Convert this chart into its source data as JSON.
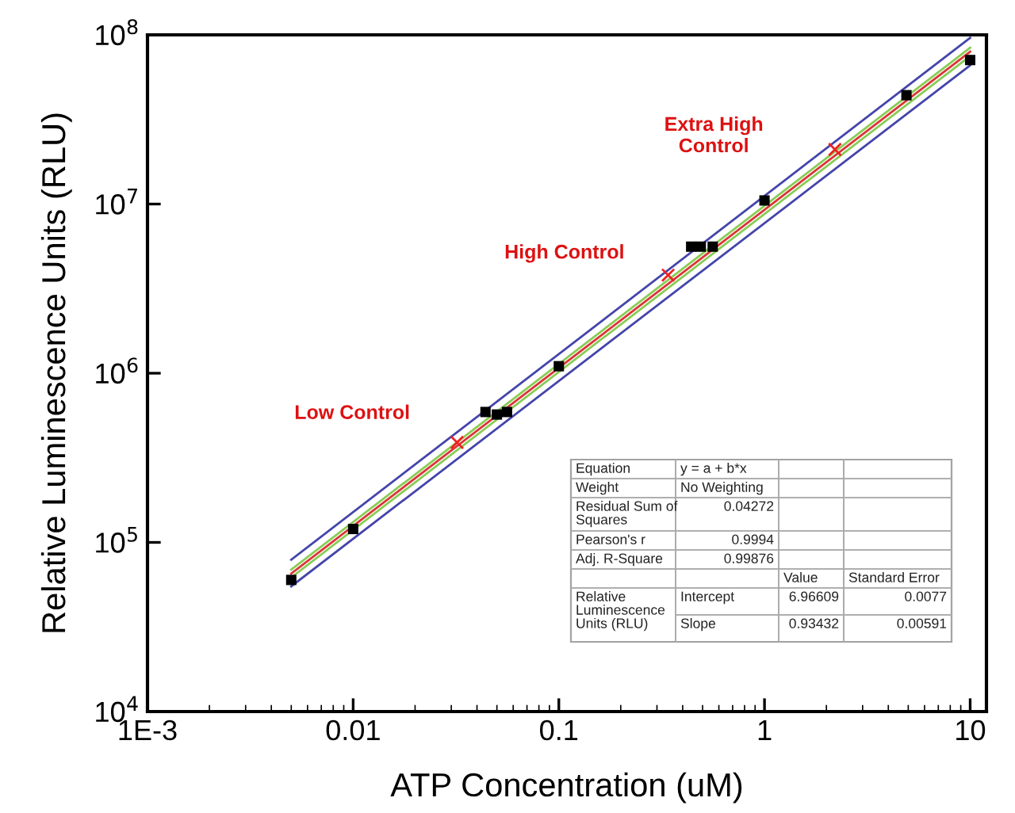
{
  "chart_data": {
    "type": "scatter",
    "xlabel": "ATP Concentration (uM)",
    "ylabel": "Relative Luminescence Units (RLU)",
    "log": "xy",
    "grid": false,
    "xlim": [
      0.001,
      12
    ],
    "ylim": [
      10000,
      100000000
    ],
    "xticks": [
      {
        "value": 0.001,
        "label": "1E-3"
      },
      0.01,
      0.1,
      1,
      10
    ],
    "yticks": [
      {
        "value": 10000,
        "label": "10$^{4}$"
      },
      {
        "value": 100000,
        "label": "10$^{5}$"
      },
      {
        "value": 1000000,
        "label": "10$^{6}$"
      },
      {
        "value": 10000000,
        "label": "10$^{7}$"
      },
      {
        "value": 100000000,
        "label": "10$^{8}$"
      }
    ],
    "series": [
      {
        "type": "line",
        "color": "#4444aa",
        "marker": "none",
        "x": [
          0.005,
          10
        ],
        "values": [
          79000,
          96000000
        ]
      },
      {
        "type": "line",
        "color": "#4444aa",
        "marker": "none",
        "x": [
          0.005,
          10
        ],
        "values": [
          55000,
          66000000
        ]
      },
      {
        "type": "line",
        "color": "#88cc55",
        "marker": "none",
        "x": [
          0.005,
          10
        ],
        "values": [
          69000,
          84000000
        ]
      },
      {
        "type": "line",
        "color": "#88cc55",
        "marker": "none",
        "x": [
          0.005,
          10
        ],
        "values": [
          62000,
          75000000
        ]
      },
      {
        "type": "line",
        "color": "#dd3333",
        "marker": "none",
        "x": [
          0.005,
          10
        ],
        "values": [
          65500,
          79500000
        ]
      },
      {
        "color": "#000000",
        "marker": "square",
        "x": [
          0.005,
          0.01,
          0.044,
          0.05,
          0.056,
          0.1,
          0.44,
          0.49,
          0.56,
          1,
          4.9,
          10
        ],
        "values": [
          60000,
          120000,
          590000,
          570000,
          590000,
          1100000,
          5600000,
          5600000,
          5600000,
          10500000,
          44000000,
          71000000
        ]
      },
      {
        "type": "scatter",
        "color": "#ee2222",
        "marker": "cross",
        "x": [
          0.032,
          0.34,
          2.2
        ],
        "values": [
          390000,
          3800000,
          21000000
        ]
      }
    ],
    "annotations": [
      "Low Control",
      "High Control",
      "Extra High\nControl",
      "Equation",
      "y = a + b*x",
      "Weight",
      "No Weighting",
      "Residual Sum of\nSquares",
      "0.04272",
      "Pearson's r",
      "0.9994",
      "Adj. R-Square",
      "0.99876",
      "Value",
      "Standard Error",
      "Relative\nLuminescence\nUnits (RLU)",
      "Intercept",
      "6.96609",
      "0.0077",
      "Slope",
      "0.93432",
      "0.00591"
    ]
  }
}
